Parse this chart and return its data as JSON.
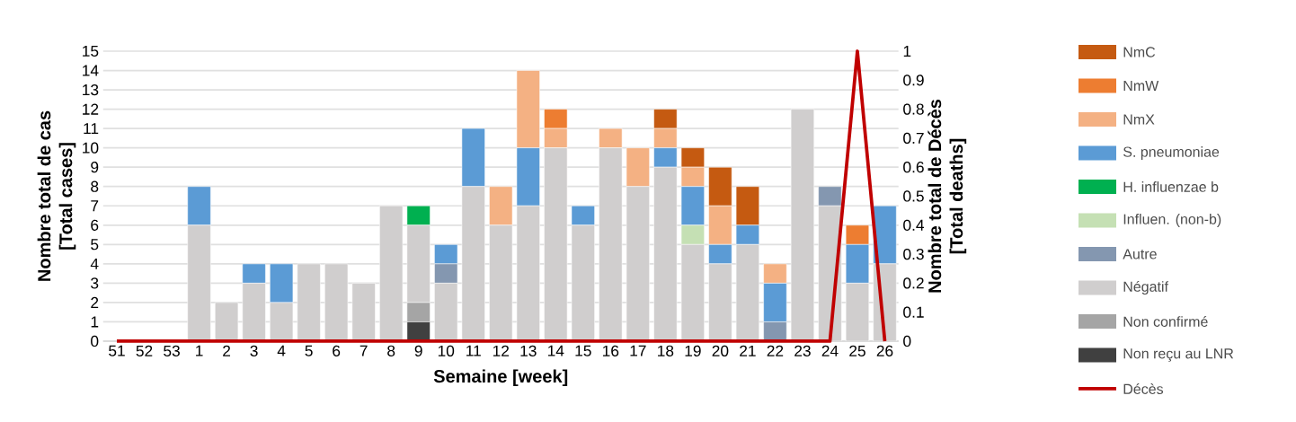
{
  "chart_data": {
    "type": "bar",
    "stacked": true,
    "xlabel": "Semaine [week]",
    "ylabel": "Nombre total de cas [Total cases]",
    "y2label": "Nombre total de Décès [Total deaths]",
    "categories": [
      "51",
      "52",
      "53",
      "1",
      "2",
      "3",
      "4",
      "5",
      "6",
      "7",
      "8",
      "9",
      "10",
      "11",
      "12",
      "13",
      "14",
      "15",
      "16",
      "17",
      "18",
      "19",
      "20",
      "21",
      "22",
      "23",
      "24",
      "25",
      "26"
    ],
    "ylim": [
      0,
      15
    ],
    "yticks": [
      0,
      1,
      2,
      3,
      4,
      5,
      6,
      7,
      8,
      9,
      10,
      11,
      12,
      13,
      14,
      15
    ],
    "y2lim": [
      0,
      1
    ],
    "y2ticks": [
      0,
      0.1,
      0.2,
      0.3,
      0.4,
      0.5,
      0.6,
      0.7,
      0.8,
      0.9,
      1
    ],
    "grid": "y",
    "legend": "right",
    "series": [
      {
        "name": "Non reçu au LNR",
        "color": "#404040",
        "values": [
          0,
          0,
          0,
          0,
          0,
          0,
          0,
          0,
          0,
          0,
          0,
          1,
          0,
          0,
          0,
          0,
          0,
          0,
          0,
          0,
          0,
          0,
          0,
          0,
          0,
          0,
          0,
          0,
          0
        ]
      },
      {
        "name": "Non confirmé",
        "color": "#a5a5a5",
        "values": [
          0,
          0,
          0,
          0,
          0,
          0,
          0,
          0,
          0,
          0,
          0,
          1,
          0,
          0,
          0,
          0,
          0,
          0,
          0,
          0,
          0,
          0,
          0,
          0,
          0,
          0,
          0,
          0,
          0
        ]
      },
      {
        "name": "Négatif",
        "color": "#d0cece",
        "values": [
          0,
          0,
          0,
          6,
          2,
          3,
          2,
          4,
          4,
          3,
          7,
          4,
          3,
          8,
          6,
          7,
          10,
          6,
          10,
          8,
          9,
          5,
          4,
          5,
          0,
          12,
          7,
          3,
          4
        ]
      },
      {
        "name": "Autre",
        "color": "#8497b0",
        "values": [
          0,
          0,
          0,
          0,
          0,
          0,
          0,
          0,
          0,
          0,
          0,
          0,
          1,
          0,
          0,
          0,
          0,
          0,
          0,
          0,
          0,
          0,
          0,
          0,
          1,
          0,
          1,
          0,
          0
        ]
      },
      {
        "name": "Influen. (non-b)",
        "color": "#c5e0b4",
        "values": [
          0,
          0,
          0,
          0,
          0,
          0,
          0,
          0,
          0,
          0,
          0,
          0,
          0,
          0,
          0,
          0,
          0,
          0,
          0,
          0,
          0,
          1,
          0,
          0,
          0,
          0,
          0,
          0,
          0
        ]
      },
      {
        "name": "H. influenzae b",
        "color": "#00b050",
        "values": [
          0,
          0,
          0,
          0,
          0,
          0,
          0,
          0,
          0,
          0,
          0,
          1,
          0,
          0,
          0,
          0,
          0,
          0,
          0,
          0,
          0,
          0,
          0,
          0,
          0,
          0,
          0,
          0,
          0
        ]
      },
      {
        "name": "S. pneumoniae",
        "color": "#5b9bd5",
        "values": [
          0,
          0,
          0,
          2,
          0,
          1,
          2,
          0,
          0,
          0,
          0,
          0,
          1,
          3,
          0,
          3,
          0,
          1,
          0,
          0,
          1,
          2,
          1,
          1,
          2,
          0,
          0,
          2,
          3
        ]
      },
      {
        "name": "NmX",
        "color": "#f4b183",
        "values": [
          0,
          0,
          0,
          0,
          0,
          0,
          0,
          0,
          0,
          0,
          0,
          0,
          0,
          0,
          2,
          4,
          1,
          0,
          1,
          2,
          1,
          1,
          2,
          0,
          1,
          0,
          0,
          0,
          0
        ]
      },
      {
        "name": "NmW",
        "color": "#ed7d31",
        "values": [
          0,
          0,
          0,
          0,
          0,
          0,
          0,
          0,
          0,
          0,
          0,
          0,
          0,
          0,
          0,
          0,
          1,
          0,
          0,
          0,
          0,
          0,
          0,
          0,
          0,
          0,
          0,
          1,
          0
        ]
      },
      {
        "name": "NmC",
        "color": "#c55a11",
        "values": [
          0,
          0,
          0,
          0,
          0,
          0,
          0,
          0,
          0,
          0,
          0,
          0,
          0,
          0,
          0,
          0,
          0,
          0,
          0,
          0,
          1,
          1,
          2,
          2,
          0,
          0,
          0,
          0,
          0
        ]
      },
      {
        "name": "Décès",
        "type": "line",
        "axis": "y2",
        "color": "#c00000",
        "values": [
          0,
          0,
          0,
          0,
          0,
          0,
          0,
          0,
          0,
          0,
          0,
          0,
          0,
          0,
          0,
          0,
          0,
          0,
          0,
          0,
          0,
          0,
          0,
          0,
          0,
          0,
          0,
          1,
          0
        ]
      }
    ]
  }
}
